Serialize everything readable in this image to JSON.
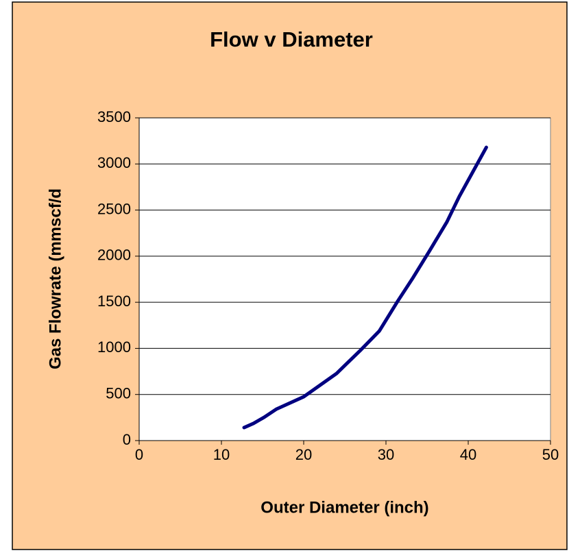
{
  "chart_data": {
    "type": "line",
    "title": "Flow v Diameter",
    "x_label": "Outer Diameter (inch)",
    "y_label": "Gas Flowrate (mmscf/d",
    "x": [
      12.75,
      13.9,
      15.2,
      16.7,
      20,
      24,
      27,
      29.2,
      31.4,
      33.3,
      35.3,
      37.4,
      38.9,
      42.2
    ],
    "series": [
      {
        "name": "Flow",
        "color": "#000080",
        "values": [
          141,
          186,
          253,
          342,
          475,
          728,
          988,
          1189,
          1508,
          1768,
          2058,
          2370,
          2645,
          3180
        ]
      }
    ],
    "xlim": [
      0,
      50
    ],
    "xticks": [
      0,
      10,
      20,
      30,
      40,
      50
    ],
    "ylim": [
      0,
      3500
    ],
    "yticks": [
      0,
      500,
      1000,
      1500,
      2000,
      2500,
      3000,
      3500
    ],
    "grid": true,
    "background": "#FFCC99"
  }
}
